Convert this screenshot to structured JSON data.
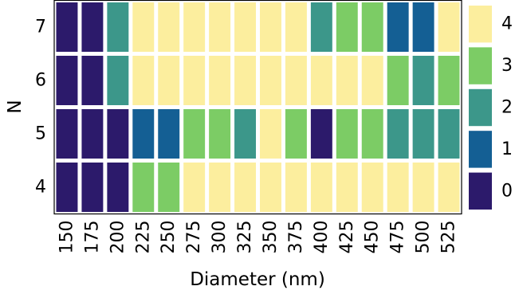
{
  "chart_data": {
    "type": "heatmap",
    "title": "",
    "xlabel": "Diameter (nm)",
    "ylabel": "N",
    "x": [
      "150",
      "175",
      "200",
      "225",
      "250",
      "275",
      "300",
      "325",
      "350",
      "375",
      "400",
      "425",
      "450",
      "475",
      "500",
      "525"
    ],
    "y": [
      "4",
      "5",
      "6",
      "7"
    ],
    "values": [
      [
        0,
        0,
        0,
        3,
        3,
        4,
        4,
        4,
        4,
        4,
        4,
        4,
        4,
        4,
        4,
        4
      ],
      [
        0,
        0,
        0,
        1,
        1,
        3,
        3,
        2,
        4,
        3,
        0,
        3,
        3,
        2,
        2,
        2
      ],
      [
        0,
        0,
        2,
        4,
        4,
        4,
        4,
        4,
        4,
        4,
        4,
        4,
        4,
        3,
        2,
        3
      ],
      [
        0,
        0,
        2,
        4,
        4,
        4,
        4,
        4,
        4,
        4,
        2,
        3,
        3,
        1,
        1,
        4
      ]
    ],
    "colorbar": {
      "levels": [
        "0",
        "1",
        "2",
        "3",
        "4"
      ],
      "colors": [
        "#2c1a6b",
        "#145f94",
        "#3c978a",
        "#7ccc65",
        "#fcee9e"
      ]
    }
  }
}
